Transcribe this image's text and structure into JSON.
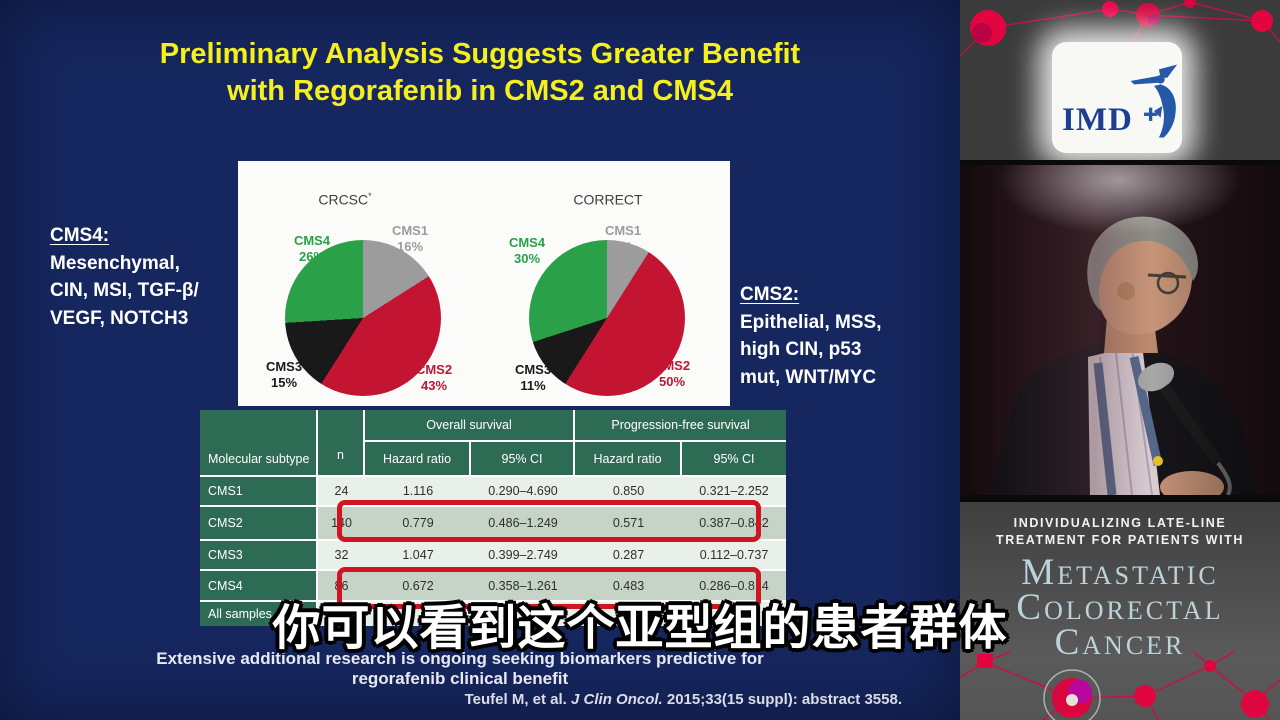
{
  "slide": {
    "title_line1": "Preliminary Analysis Suggests Greater Benefit",
    "title_line2": "with Regorafenib in CMS2 and CMS4",
    "cms4_note": {
      "heading": "CMS4:",
      "lines": [
        "Mesenchymal,",
        "CIN, MSI, TGF-β/",
        "VEGF, NOTCH3"
      ]
    },
    "cms2_note": {
      "heading": "CMS2:",
      "lines": [
        "Epithelial, MSS,",
        "high CIN, p53",
        "mut, WNT/MYC"
      ]
    },
    "footer_line1": "Extensive additional research is ongoing seeking biomarkers predictive for",
    "footer_line2": "regorafenib clinical benefit",
    "citation": {
      "pre": "Teufel M, et al. ",
      "italic": "J Clin Oncol.",
      "post": " 2015;33(15 suppl): abstract 3558."
    }
  },
  "chart_data": [
    {
      "type": "pie",
      "title": "CRCSC",
      "title_sup": "*",
      "labels": [
        "CMS1",
        "CMS2",
        "CMS3",
        "CMS4"
      ],
      "values": [
        16,
        43,
        15,
        26
      ],
      "display_values": [
        "16%",
        "43%",
        "15%",
        "26%"
      ],
      "colors": [
        "#9c9c9c",
        "#c31432",
        "#191919",
        "#2aa148"
      ],
      "start_angle_deg": 0,
      "direction": "clockwise",
      "legend_position": "around"
    },
    {
      "type": "pie",
      "title": "CORRECT",
      "title_sup": "",
      "labels": [
        "CMS1",
        "CMS2",
        "CMS3",
        "CMS4"
      ],
      "values": [
        9,
        50,
        11,
        30
      ],
      "display_values": [
        "9%",
        "50%",
        "11%",
        "30%"
      ],
      "colors": [
        "#9c9c9c",
        "#c31432",
        "#191919",
        "#2aa148"
      ],
      "start_angle_deg": 0,
      "direction": "clockwise",
      "legend_position": "around"
    },
    {
      "type": "table",
      "col_groups": [
        "Overall survival",
        "Progression-free survival"
      ],
      "columns": [
        "Molecular subtype",
        "n",
        "Hazard ratio",
        "95% CI",
        "Hazard ratio",
        "95% CI"
      ],
      "rows": [
        [
          "CMS1",
          "24",
          "1.116",
          "0.290–4.690",
          "0.850",
          "0.321–2.252"
        ],
        [
          "CMS2",
          "140",
          "0.779",
          "0.486–1.249",
          "0.571",
          "0.387–0.842"
        ],
        [
          "CMS3",
          "32",
          "1.047",
          "0.399–2.749",
          "0.287",
          "0.112–0.737"
        ],
        [
          "CMS4",
          "86",
          "0.672",
          "0.358–1.261",
          "0.483",
          "0.286–0.814"
        ],
        [
          "All samples",
          "",
          "",
          "",
          "",
          ""
        ]
      ],
      "shaded_rows": [
        1,
        3
      ],
      "highlighted_rows": [
        "CMS2",
        "CMS4"
      ]
    }
  ],
  "subtitle_text": "你可以看到这个亚型组的患者群体",
  "video_panel": {
    "logo_text": "IMD",
    "small_line1": "INDIVIDUALIZING LATE-LINE",
    "small_line2": "TREATMENT FOR PATIENTS WITH",
    "large_line1": "Metastatic",
    "large_line2": "Colorectal",
    "large_line3": "Cancer"
  },
  "colors": {
    "slide_bg": "#16275f",
    "title_yellow": "#f5ef1e",
    "table_header_green": "#2d6b54",
    "row_light": "#e9efe9",
    "row_shaded": "#c6d4c8",
    "highlight_red": "#d11422",
    "pie_green": "#2aa148",
    "pie_red": "#c31432",
    "pie_gray": "#9c9c9c",
    "pie_black": "#191919",
    "network_red": "#d9063f",
    "mcc_text_blue": "#bdd3dc"
  }
}
